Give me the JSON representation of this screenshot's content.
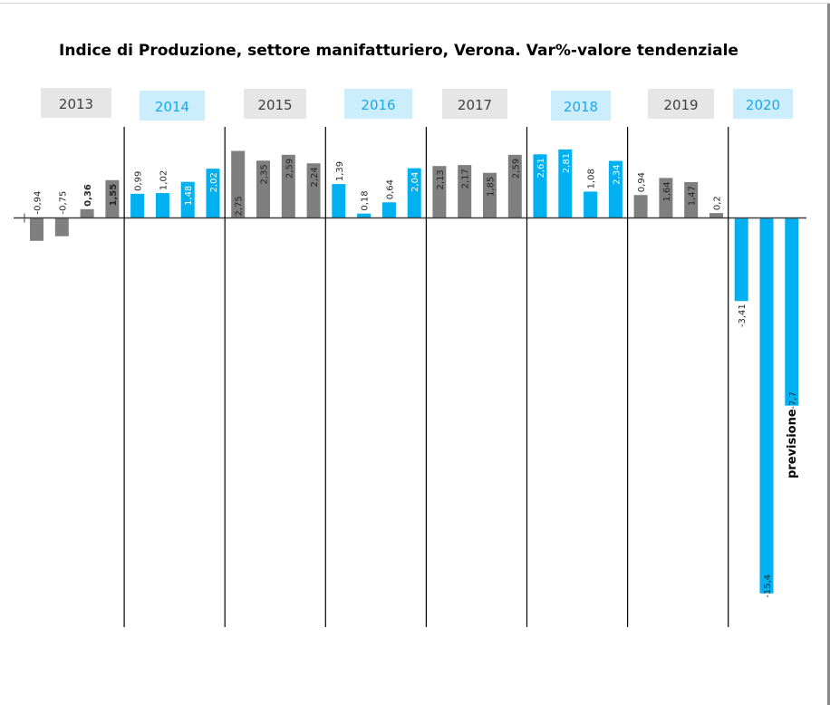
{
  "chart_data": {
    "type": "bar",
    "title": "Indice di Produzione, settore manifatturiero, Verona. Var%-valore tendenziale",
    "xlabel": "",
    "ylabel": "",
    "grid": false,
    "legend": "none",
    "ylim": [
      -17,
      3.5
    ],
    "groups": [
      {
        "year": "2013",
        "style": "gray",
        "values": [
          -0.94,
          -0.75,
          0.36,
          1.55
        ],
        "labels": [
          "-0,94",
          "-0,75",
          "0,36",
          "1,55"
        ]
      },
      {
        "year": "2014",
        "style": "blue",
        "values": [
          0.99,
          1.02,
          1.48,
          2.02
        ],
        "labels": [
          "0,99",
          "1,02",
          "1,48",
          "2,02"
        ]
      },
      {
        "year": "2015",
        "style": "gray",
        "values": [
          2.75,
          2.35,
          2.59,
          2.24
        ],
        "labels": [
          "2,75",
          "2,35",
          "2,59",
          "2,24"
        ]
      },
      {
        "year": "2016",
        "style": "blue",
        "values": [
          1.39,
          0.18,
          0.64,
          2.04
        ],
        "labels": [
          "1,39",
          "0,18",
          "0,64",
          "2,04"
        ]
      },
      {
        "year": "2017",
        "style": "gray",
        "values": [
          2.13,
          2.17,
          1.85,
          2.59
        ],
        "labels": [
          "2,13",
          "2,17",
          "1,85",
          "2,59"
        ]
      },
      {
        "year": "2018",
        "style": "blue",
        "values": [
          2.61,
          2.81,
          1.08,
          2.34
        ],
        "labels": [
          "2,61",
          "2,81",
          "1,08",
          "2,34"
        ]
      },
      {
        "year": "2019",
        "style": "gray",
        "values": [
          0.94,
          1.64,
          1.47,
          0.2
        ],
        "labels": [
          "0,94",
          "1,64",
          "1,47",
          "0,2"
        ]
      },
      {
        "year": "2020",
        "style": "blue",
        "values": [
          -3.41,
          -15.4,
          -7.7
        ],
        "labels": [
          "-3,41",
          "-15,4",
          "-7,7"
        ]
      }
    ],
    "annotations": [
      "previsione"
    ],
    "colors": {
      "gray_bar": "#7f7f7f",
      "blue_bar": "#00b0f0",
      "gray_label_bg": "#e6e6e6",
      "blue_label_bg": "#cceefc",
      "gray_label_text": "#404040",
      "blue_label_text": "#1aa7e8"
    }
  }
}
